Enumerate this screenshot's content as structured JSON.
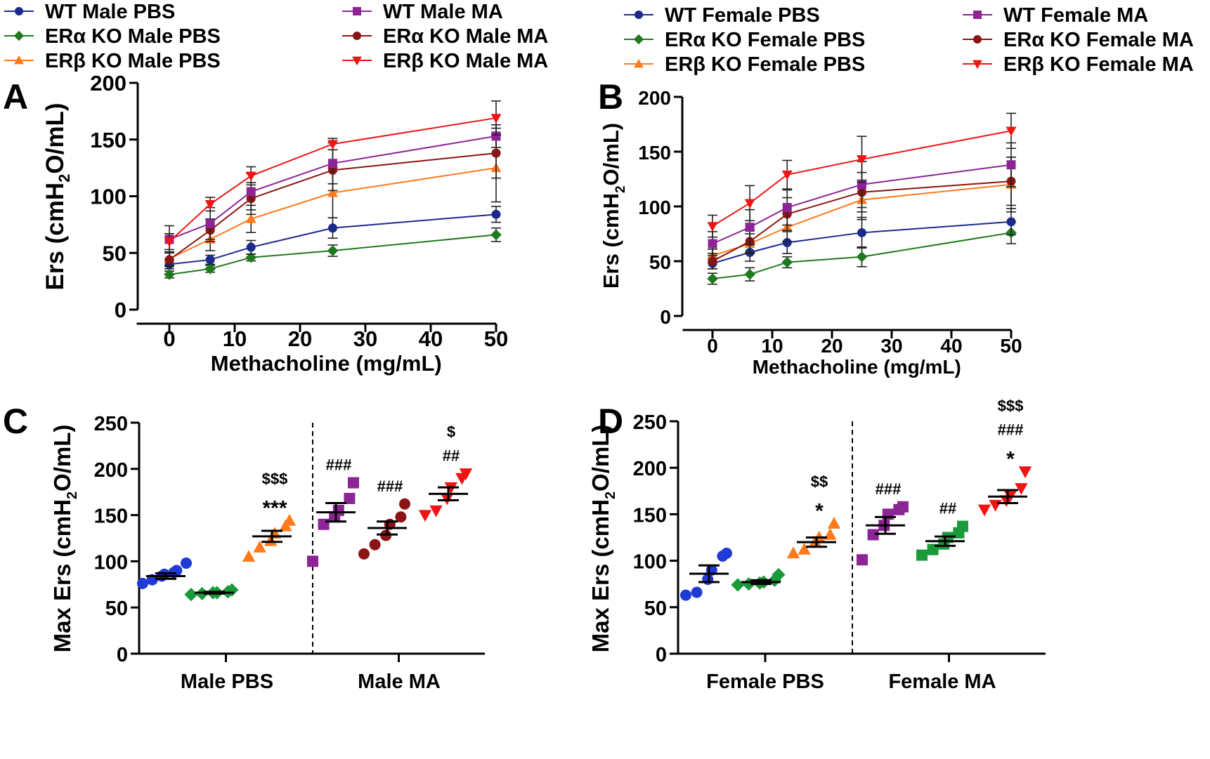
{
  "colors": {
    "wt_pbs": "#1c2a8c",
    "wt_ma": "#8c2496",
    "era_pbs": "#1f7a1f",
    "era_ma": "#8b1414",
    "erb_pbs": "#ff7a1a",
    "erb_ma": "#f01414",
    "green_bright": "#1a9a3a",
    "blue_bright": "#1f3ad6",
    "axis": "#000000"
  },
  "legend": {
    "male": [
      {
        "key": "wt_pbs",
        "label": "WT Male PBS",
        "marker": "circle"
      },
      {
        "key": "era_pbs",
        "label": "ERα KO Male PBS",
        "marker": "diamond"
      },
      {
        "key": "erb_pbs",
        "label": "ERβ KO Male PBS",
        "marker": "triangle-up"
      },
      {
        "key": "wt_ma",
        "label": "WT Male MA",
        "marker": "square"
      },
      {
        "key": "era_ma",
        "label": "ERα KO Male MA",
        "marker": "circle"
      },
      {
        "key": "erb_ma",
        "label": "ERβ KO Male MA",
        "marker": "triangle-down"
      }
    ],
    "female": [
      {
        "key": "wt_pbs",
        "label": "WT Female PBS",
        "marker": "circle"
      },
      {
        "key": "era_pbs",
        "label": "ERα KO Female PBS",
        "marker": "diamond"
      },
      {
        "key": "erb_pbs",
        "label": "ERβ KO Female PBS",
        "marker": "triangle-up"
      },
      {
        "key": "wt_ma",
        "label": "WT Female MA",
        "marker": "square"
      },
      {
        "key": "era_ma",
        "label": "ERα KO Female MA",
        "marker": "circle"
      },
      {
        "key": "erb_ma",
        "label": "ERβ KO Female MA",
        "marker": "triangle-down"
      }
    ]
  },
  "chart_data": [
    {
      "panel": "A",
      "type": "line",
      "xlabel": "Methacholine (mg/mL)",
      "ylabel_parts": [
        "Ers (cmH",
        "2",
        "O/mL)"
      ],
      "xlim": [
        -5,
        50
      ],
      "ylim": [
        0,
        200
      ],
      "xticks": [
        0,
        10,
        20,
        30,
        40,
        50
      ],
      "yticks": [
        0,
        50,
        100,
        150,
        200
      ],
      "x": [
        0,
        6.25,
        12.5,
        25,
        50
      ],
      "series": [
        {
          "key": "era_pbs",
          "name": "ERα KO Male PBS",
          "marker": "diamond",
          "values": [
            31,
            36,
            46,
            52,
            66
          ],
          "errors": [
            3,
            3,
            3,
            5,
            6
          ]
        },
        {
          "key": "wt_pbs",
          "name": "WT Male PBS",
          "marker": "circle",
          "values": [
            40,
            44,
            55,
            72,
            84
          ],
          "errors": [
            4,
            4,
            6,
            9,
            7
          ]
        },
        {
          "key": "erb_pbs",
          "name": "ERβ KO Male PBS",
          "marker": "triangle-up",
          "values": [
            45,
            62,
            80,
            103,
            125
          ],
          "errors": [
            6,
            10,
            12,
            22,
            30
          ]
        },
        {
          "key": "era_ma",
          "name": "ERα KO Male MA",
          "marker": "circle",
          "values": [
            44,
            70,
            98,
            123,
            138
          ],
          "errors": [
            6,
            10,
            14,
            18,
            22
          ]
        },
        {
          "key": "wt_ma",
          "name": "WT Male MA",
          "marker": "square",
          "values": [
            62,
            76,
            104,
            129,
            153
          ],
          "errors": [
            12,
            14,
            16,
            18,
            10
          ]
        },
        {
          "key": "erb_ma",
          "name": "ERβ KO Male MA",
          "marker": "triangle-down",
          "values": [
            60,
            93,
            118,
            146,
            169
          ],
          "errors": [
            7,
            6,
            8,
            5,
            15
          ]
        }
      ]
    },
    {
      "panel": "B",
      "type": "line",
      "xlabel": "Methacholine (mg/mL)",
      "ylabel_parts": [
        "Ers (cmH",
        "2",
        "O/mL)"
      ],
      "xlim": [
        -5,
        50
      ],
      "ylim": [
        0,
        200
      ],
      "xticks": [
        0,
        10,
        20,
        30,
        40,
        50
      ],
      "yticks": [
        0,
        50,
        100,
        150,
        200
      ],
      "x": [
        0,
        6.25,
        12.5,
        25,
        50
      ],
      "series": [
        {
          "key": "era_pbs",
          "name": "ERα KO Female PBS",
          "marker": "diamond",
          "values": [
            34,
            38,
            49,
            54,
            76
          ],
          "errors": [
            5,
            6,
            5,
            9,
            10
          ]
        },
        {
          "key": "wt_pbs",
          "name": "WT Female PBS",
          "marker": "circle",
          "values": [
            48,
            58,
            67,
            76,
            86
          ],
          "errors": [
            5,
            8,
            10,
            14,
            12
          ]
        },
        {
          "key": "erb_pbs",
          "name": "ERβ KO Female PBS",
          "marker": "triangle-up",
          "values": [
            55,
            66,
            81,
            106,
            120
          ],
          "errors": [
            6,
            9,
            13,
            18,
            25
          ]
        },
        {
          "key": "era_ma",
          "name": "ERα KO Female MA",
          "marker": "circle",
          "values": [
            50,
            68,
            93,
            113,
            123
          ],
          "errors": [
            7,
            10,
            15,
            18,
            22
          ]
        },
        {
          "key": "wt_ma",
          "name": "WT Female MA",
          "marker": "square",
          "values": [
            66,
            81,
            99,
            120,
            138
          ],
          "errors": [
            11,
            16,
            16,
            21,
            20
          ]
        },
        {
          "key": "erb_ma",
          "name": "ERβ KO Female MA",
          "marker": "triangle-down",
          "values": [
            82,
            103,
            129,
            143,
            169
          ],
          "errors": [
            10,
            16,
            13,
            21,
            16
          ]
        }
      ]
    },
    {
      "panel": "C",
      "type": "scatter",
      "ylabel_parts": [
        "Max Ers (cmH",
        "2",
        "O/mL)"
      ],
      "ylim": [
        0,
        250
      ],
      "yticks": [
        0,
        50,
        100,
        150,
        200,
        250
      ],
      "group_labels": [
        "Male PBS",
        "Male MA"
      ],
      "groups": [
        {
          "key": "wt_pbs",
          "color_key": "blue_bright",
          "marker": "circle",
          "points": [
            76,
            80,
            84,
            86,
            88,
            90,
            98
          ],
          "mean": 84,
          "sem": 3,
          "annotations": []
        },
        {
          "key": "era_pbs",
          "color_key": "green_bright",
          "marker": "diamond",
          "points": [
            64,
            65,
            66,
            66,
            67,
            69
          ],
          "mean": 66,
          "sem": 1,
          "annotations": []
        },
        {
          "key": "erb_pbs",
          "color_key": "erb_pbs",
          "marker": "triangle-up",
          "points": [
            105,
            115,
            122,
            130,
            138,
            144
          ],
          "mean": 127,
          "sem": 6,
          "annotations": [
            "$$$",
            "***"
          ]
        },
        {
          "key": "wt_ma",
          "color_key": "wt_ma",
          "marker": "square",
          "points": [
            100,
            140,
            148,
            155,
            168,
            185
          ],
          "mean": 153,
          "sem": 10,
          "annotations": [
            "###"
          ]
        },
        {
          "key": "era_ma",
          "color_key": "era_ma",
          "marker": "circle",
          "points": [
            108,
            118,
            128,
            140,
            148,
            162
          ],
          "mean": 136,
          "sem": 7,
          "annotations": [
            "###"
          ]
        },
        {
          "key": "erb_ma",
          "color_key": "erb_ma",
          "marker": "triangle-down",
          "points": [
            150,
            155,
            168,
            180,
            190,
            195
          ],
          "mean": 173,
          "sem": 7,
          "annotations": [
            "$",
            "##"
          ]
        }
      ]
    },
    {
      "panel": "D",
      "type": "scatter",
      "ylabel_parts": [
        "Max Ers (cmH",
        "2",
        "O/mL)"
      ],
      "ylim": [
        0,
        250
      ],
      "yticks": [
        0,
        50,
        100,
        150,
        200,
        250
      ],
      "group_labels": [
        "Female PBS",
        "Female MA"
      ],
      "groups": [
        {
          "key": "wt_pbs",
          "color_key": "blue_bright",
          "marker": "circle",
          "points": [
            63,
            66,
            80,
            90,
            105,
            108
          ],
          "mean": 86,
          "sem": 9,
          "annotations": []
        },
        {
          "key": "era_pbs",
          "color_key": "green_bright",
          "marker": "diamond",
          "points": [
            74,
            75,
            76,
            77,
            79,
            85
          ],
          "mean": 77,
          "sem": 2,
          "annotations": []
        },
        {
          "key": "erb_pbs",
          "color_key": "erb_pbs",
          "marker": "triangle-up",
          "points": [
            108,
            112,
            120,
            125,
            128,
            140
          ],
          "mean": 120,
          "sem": 5,
          "annotations": [
            "$$",
            "*"
          ]
        },
        {
          "key": "wt_ma",
          "color_key": "wt_ma",
          "marker": "square",
          "points": [
            101,
            128,
            138,
            150,
            155,
            158
          ],
          "mean": 138,
          "sem": 9,
          "annotations": [
            "###"
          ]
        },
        {
          "key": "era_ma",
          "color_key": "green_bright",
          "marker": "square",
          "points": [
            106,
            112,
            118,
            125,
            130,
            137
          ],
          "mean": 121,
          "sem": 5,
          "annotations": [
            "##"
          ]
        },
        {
          "key": "erb_ma",
          "color_key": "erb_ma",
          "marker": "triangle-down",
          "points": [
            155,
            160,
            165,
            170,
            178,
            196
          ],
          "mean": 169,
          "sem": 7,
          "annotations": [
            "$$$",
            "###",
            "*"
          ]
        }
      ]
    }
  ],
  "panel_letters": {
    "a": "A",
    "b": "B",
    "c": "C",
    "d": "D"
  }
}
